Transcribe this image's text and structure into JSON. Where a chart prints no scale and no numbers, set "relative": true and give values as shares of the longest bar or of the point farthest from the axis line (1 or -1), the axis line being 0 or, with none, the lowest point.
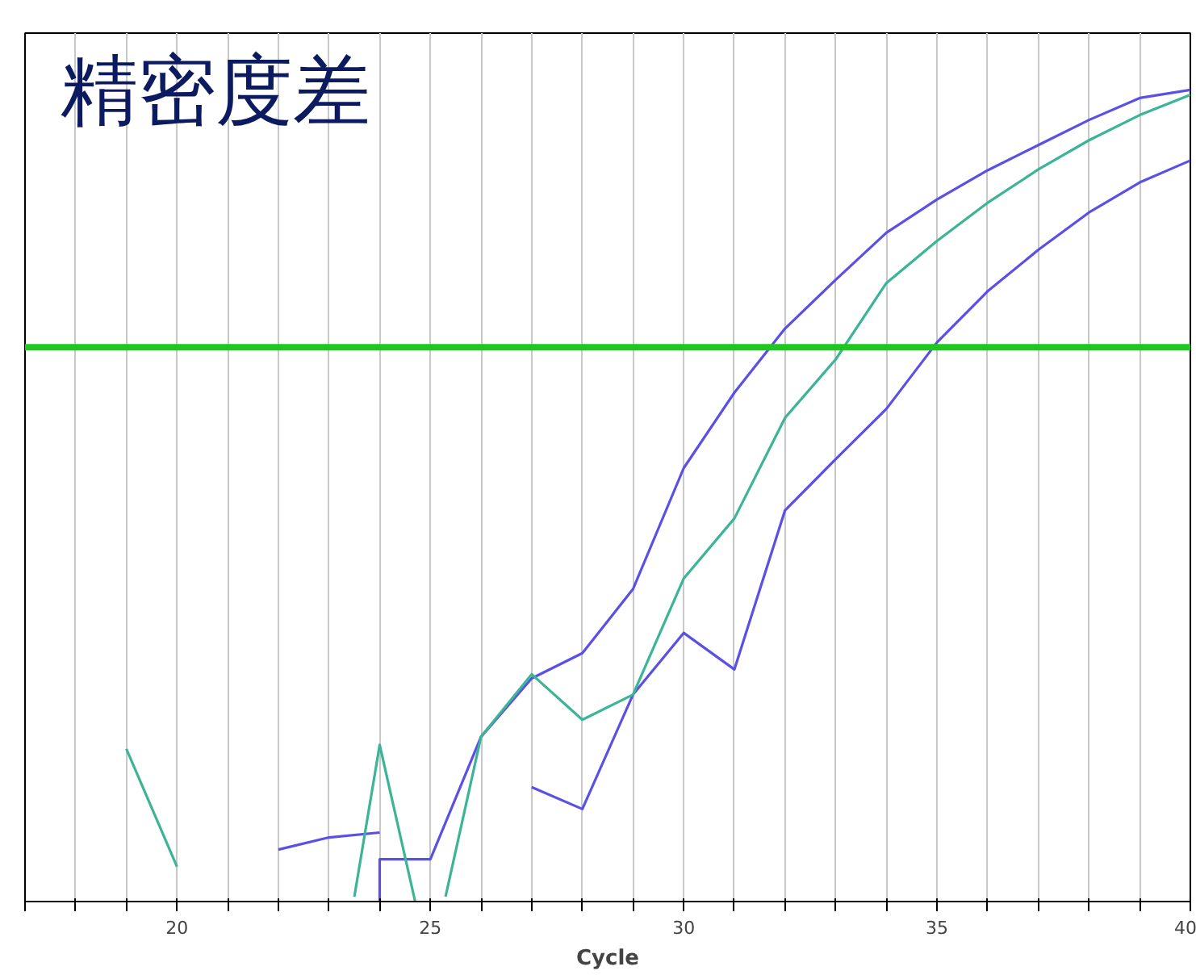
{
  "chart_data": {
    "type": "line",
    "title": "精密度差",
    "xlabel": "Cycle",
    "relative": true,
    "xlim": [
      17,
      40
    ],
    "xticks": [
      {
        "value": 17,
        "label": null
      },
      {
        "value": 18,
        "label": null
      },
      {
        "value": 19,
        "label": null
      },
      20,
      {
        "value": 21,
        "label": null
      },
      {
        "value": 22,
        "label": null
      },
      {
        "value": 23,
        "label": null
      },
      {
        "value": 24,
        "label": null
      },
      25,
      {
        "value": 26,
        "label": null
      },
      {
        "value": 27,
        "label": null
      },
      {
        "value": 28,
        "label": null
      },
      {
        "value": 29,
        "label": null
      },
      30,
      {
        "value": 31,
        "label": null
      },
      {
        "value": 32,
        "label": null
      },
      {
        "value": 33,
        "label": null
      },
      {
        "value": 34,
        "label": null
      },
      35,
      {
        "value": 36,
        "label": null
      },
      {
        "value": 37,
        "label": null
      },
      {
        "value": 38,
        "label": null
      },
      {
        "value": 39,
        "label": null
      },
      40
    ],
    "grid": "x",
    "marker": "none",
    "ref_lines": [
      {
        "axis": "y",
        "value": 0.683,
        "label": null,
        "color": "#1ec81e"
      }
    ],
    "series": [
      {
        "color": "#5a50e6",
        "x": [
          22,
          23,
          24
        ],
        "values": [
          0.064,
          0.079,
          0.085
        ]
      },
      {
        "color": "#5a50e6",
        "x": [
          24,
          24,
          25,
          26,
          27,
          28,
          29,
          30,
          31,
          32,
          33,
          34,
          35,
          36,
          37,
          38,
          39,
          40
        ],
        "values": [
          0.0,
          0.052,
          0.052,
          0.203,
          0.275,
          0.306,
          0.385,
          0.534,
          0.627,
          0.706,
          0.766,
          0.824,
          0.865,
          0.901,
          0.932,
          0.963,
          0.99,
          1.0
        ]
      },
      {
        "color": "#5a50e6",
        "x": [
          27,
          28,
          29,
          30,
          31,
          32,
          33,
          34,
          35,
          36,
          37,
          38,
          39,
          40
        ],
        "values": [
          0.141,
          0.114,
          0.255,
          0.331,
          0.286,
          0.482,
          0.545,
          0.607,
          0.689,
          0.752,
          0.803,
          0.849,
          0.886,
          0.913
        ]
      },
      {
        "color": "#3cb496",
        "x": [
          19,
          20,
          null,
          23.5,
          24,
          24.7,
          null,
          25.3,
          26,
          27,
          28,
          29,
          30,
          31,
          32,
          33,
          34,
          35,
          36,
          37,
          38,
          39,
          40
        ],
        "values": [
          0.188,
          0.043,
          null,
          0.006,
          0.193,
          0.0,
          null,
          0.006,
          0.203,
          0.28,
          0.224,
          0.255,
          0.398,
          0.472,
          0.596,
          0.668,
          0.762,
          0.814,
          0.861,
          0.902,
          0.938,
          0.969,
          0.994
        ]
      }
    ]
  }
}
